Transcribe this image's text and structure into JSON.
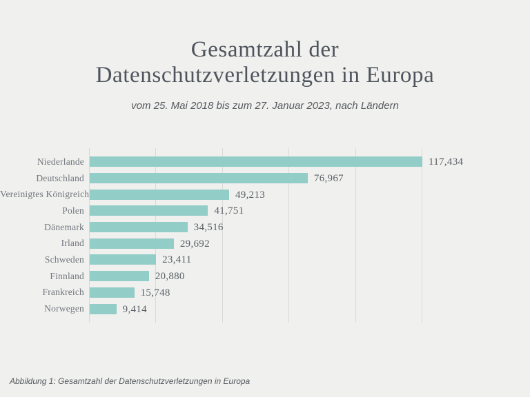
{
  "header": {
    "title_line1": "Gesamtzahl der",
    "title_line2": "Datenschutzverletzungen in Europa",
    "subtitle": "vom 25. Mai 2018 bis zum 27. Januar 2023, nach Ländern"
  },
  "footer": {
    "caption": "Abbildung 1: Gesamtzahl der Datenschutzverletzungen in Europa"
  },
  "colors": {
    "background": "#f0f0ee",
    "bar": "#93cdc7",
    "gridline": "#d9d9d7",
    "title_text": "#4f545d",
    "label_text": "#72767d",
    "value_text": "#5a5f66"
  },
  "chart_data": {
    "type": "bar",
    "orientation": "horizontal",
    "title": "Gesamtzahl der Datenschutzverletzungen in Europa",
    "subtitle": "vom 25. Mai 2018 bis zum 27. Januar 2023, nach Ländern",
    "categories": [
      "Niederlande",
      "Deutschland",
      "Vereinigtes Königreich",
      "Polen",
      "Dänemark",
      "Irland",
      "Schweden",
      "Finnland",
      "Frankreich",
      "Norwegen"
    ],
    "values": [
      117434,
      76967,
      49213,
      41751,
      34516,
      29692,
      23411,
      20880,
      15748,
      9414
    ],
    "value_labels": [
      "117,434",
      "76,967",
      "49,213",
      "41,751",
      "34,516",
      "29,692",
      "23,411",
      "20,880",
      "15,748",
      "9,414"
    ],
    "xlim": [
      0,
      117434
    ],
    "gridline_count": 6,
    "grid": "vertical-only",
    "legend": "none",
    "caption": "Abbildung 1: Gesamtzahl der Datenschutzverletzungen in Europa"
  }
}
